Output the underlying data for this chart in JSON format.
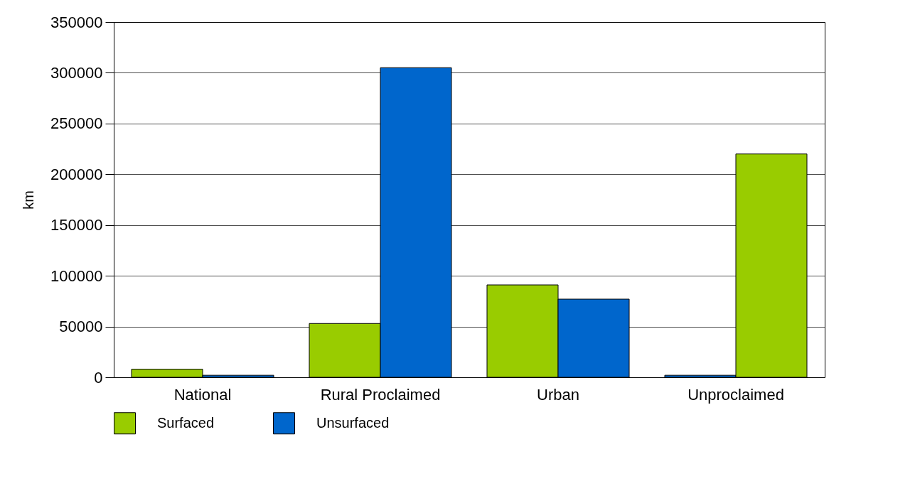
{
  "chart_data": {
    "type": "bar",
    "ylabel": "km",
    "categories": [
      "National",
      "Rural Proclaimed",
      "Urban",
      "Unproclaimed"
    ],
    "series": [
      {
        "name": "Surfaced",
        "color": "#99cc00",
        "colors": [
          "#99cc00",
          "#99cc00",
          "#99cc00",
          "#0066cc"
        ],
        "values": [
          8000,
          53000,
          91000,
          2000
        ]
      },
      {
        "name": "Unsurfaced",
        "color": "#0066cc",
        "colors": [
          "#0066cc",
          "#0066cc",
          "#0066cc",
          "#99cc00"
        ],
        "values": [
          2000,
          305000,
          77000,
          220000
        ]
      }
    ],
    "ylim": [
      0,
      350000
    ],
    "yticks": [
      0,
      50000,
      100000,
      150000,
      200000,
      250000,
      300000,
      350000
    ],
    "grid": "y",
    "legend": "bottom"
  }
}
